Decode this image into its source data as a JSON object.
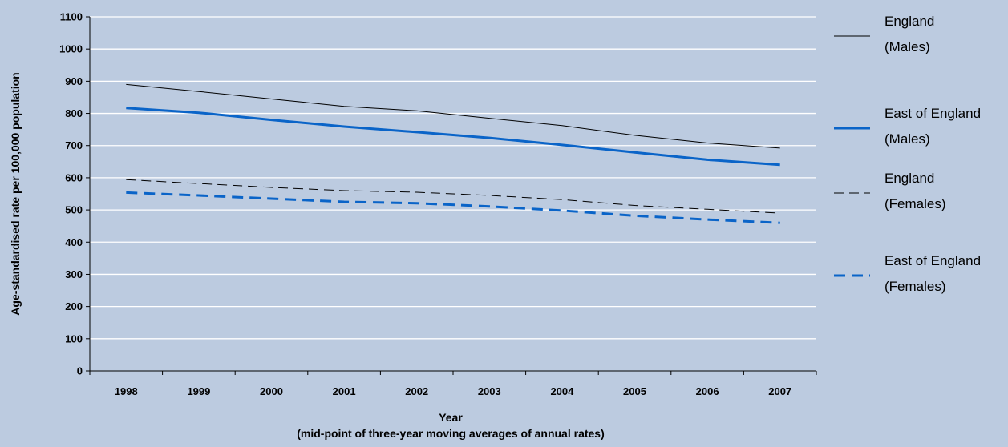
{
  "chart_data": {
    "type": "line",
    "title": "",
    "ylabel": "Age-standardised rate per 100,000 population",
    "xlabel": "Year",
    "xlabel_sub": "(mid-point of three-year moving averages of annual rates)",
    "ylim": [
      0,
      1100
    ],
    "yticks": [
      0,
      100,
      200,
      300,
      400,
      500,
      600,
      700,
      800,
      900,
      1000,
      1100
    ],
    "grid": true,
    "legend_position": "right",
    "categories": [
      "1998",
      "1999",
      "2000",
      "2001",
      "2002",
      "2003",
      "2004",
      "2005",
      "2006",
      "2007"
    ],
    "series": [
      {
        "name": "England (Males)",
        "legend_lines": [
          "England",
          "(Males)"
        ],
        "color": "#000000",
        "style": "solid",
        "weight": "thin",
        "values": [
          890,
          868,
          845,
          822,
          808,
          785,
          762,
          732,
          708,
          692
        ]
      },
      {
        "name": "East of England (Males)",
        "legend_lines": [
          "East of England",
          "(Males)"
        ],
        "color": "#0a64c8",
        "style": "solid",
        "weight": "thick",
        "values": [
          817,
          802,
          780,
          759,
          742,
          724,
          702,
          679,
          656,
          640
        ]
      },
      {
        "name": "England (Females)",
        "legend_lines": [
          "England",
          "(Females)"
        ],
        "color": "#000000",
        "style": "dashed",
        "weight": "thin",
        "values": [
          594,
          582,
          570,
          560,
          555,
          545,
          532,
          514,
          502,
          490
        ]
      },
      {
        "name": "East of England (Females)",
        "legend_lines": [
          "East of England",
          "(Females)"
        ],
        "color": "#0a64c8",
        "style": "dashed",
        "weight": "thick",
        "values": [
          554,
          545,
          535,
          525,
          521,
          511,
          498,
          482,
          470,
          460
        ]
      }
    ]
  }
}
